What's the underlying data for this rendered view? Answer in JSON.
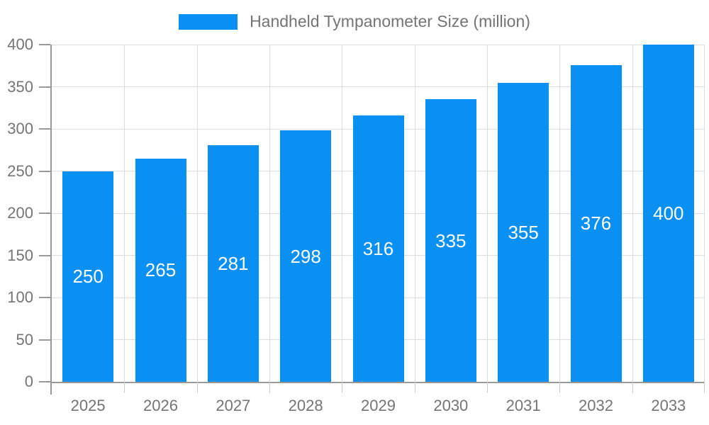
{
  "chart_data": {
    "type": "bar",
    "title": "Handheld Tympanometer Size (million)",
    "categories": [
      "2025",
      "2026",
      "2027",
      "2028",
      "2029",
      "2030",
      "2031",
      "2032",
      "2033"
    ],
    "values": [
      250,
      265,
      281,
      298,
      316,
      335,
      355,
      376,
      400
    ],
    "xlabel": "",
    "ylabel": "",
    "ylim": [
      0,
      400
    ],
    "ytick_step": 50,
    "yticks": [
      0,
      50,
      100,
      150,
      200,
      250,
      300,
      350,
      400
    ],
    "grid": true,
    "legend_position": "top-center",
    "bar_labels_visible": true,
    "bar_color": "#0a8ff2",
    "bar_label_color": "#ffffff",
    "axis_text_color": "#757575",
    "gridline_color": "#dddddd",
    "axis_line_color": "#999999"
  }
}
